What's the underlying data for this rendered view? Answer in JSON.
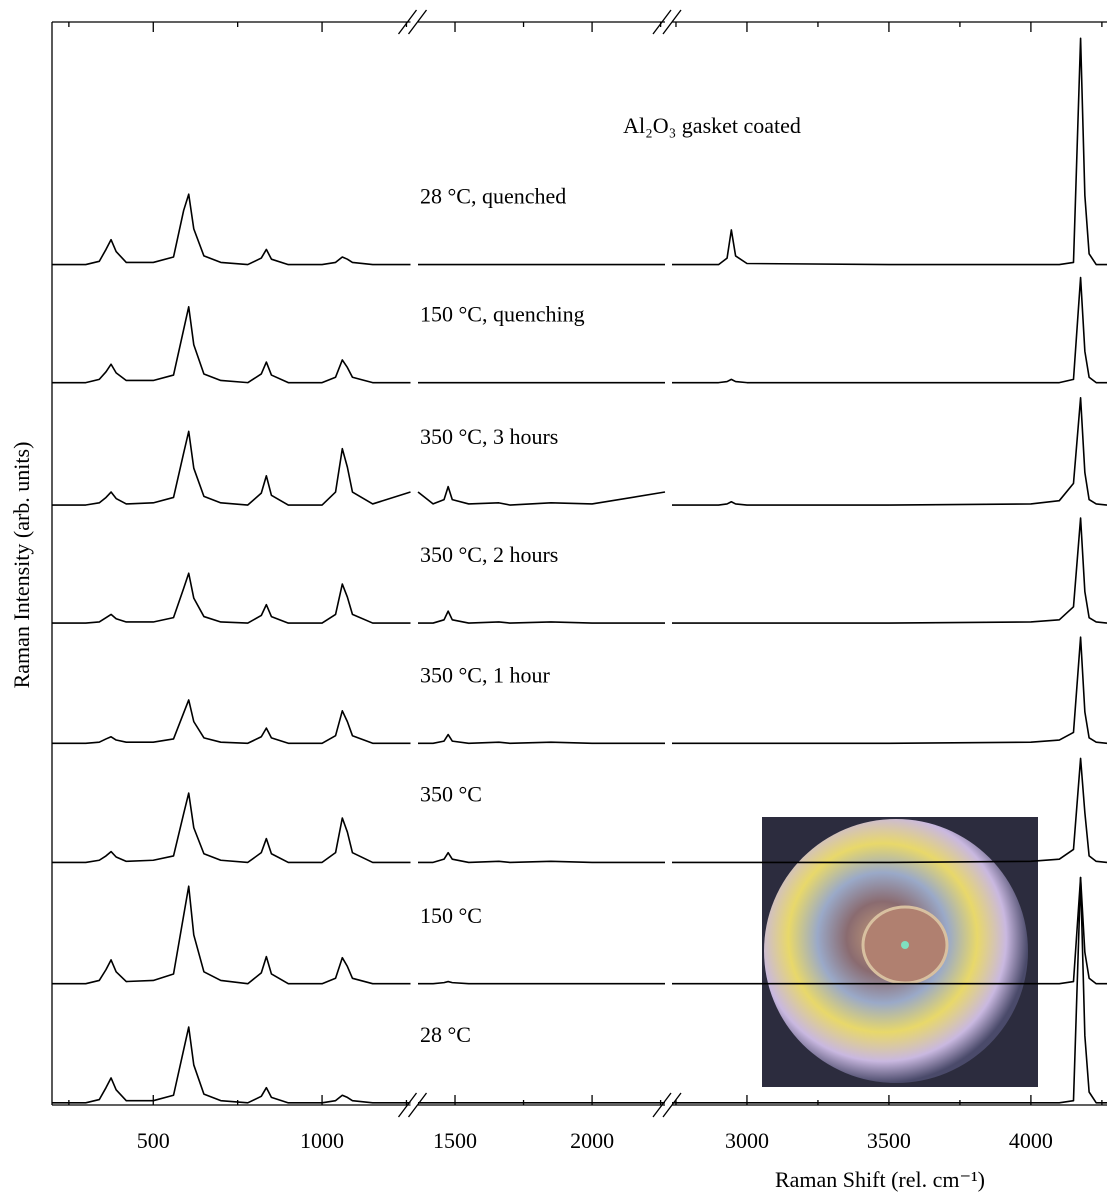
{
  "chart_data": {
    "type": "line",
    "annotation": "Al₂O₃ gasket coated",
    "xlabel": "Raman Shift (rel. cm⁻¹)",
    "ylabel": "Raman Intensity (arb. units)",
    "xlim": [
      200,
      4268
    ],
    "x_segments": [
      [
        200,
        1262
      ],
      [
        1365,
        2266
      ],
      [
        2736,
        4268
      ]
    ],
    "ylim": [
      0,
      100
    ],
    "xticks": [
      500,
      1000,
      1500,
      2000,
      3000,
      3500,
      4000
    ],
    "xminorticks": [
      250,
      750,
      1250,
      1750,
      2250,
      2750,
      3250,
      3750,
      4250
    ],
    "color": "#000000",
    "x": [
      200,
      300,
      340,
      360,
      375,
      390,
      420,
      500,
      560,
      590,
      605,
      620,
      650,
      700,
      780,
      820,
      835,
      850,
      900,
      1000,
      1040,
      1060,
      1075,
      1090,
      1150,
      1262,
      1300,
      1365,
      1420,
      1460,
      1475,
      1490,
      1550,
      1660,
      1700,
      1850,
      2000,
      2266,
      2400,
      2736,
      2900,
      2930,
      2945,
      2960,
      3000,
      3500,
      4000,
      4100,
      4150,
      4175,
      4190,
      4205,
      4230,
      4268
    ],
    "series": [
      {
        "name": "28 °C",
        "values": [
          0.2,
          0.2,
          0.5,
          1.6,
          2.5,
          1.4,
          0.4,
          0.4,
          0.9,
          5.1,
          7.2,
          3.7,
          1.0,
          0.4,
          0.2,
          0.8,
          1.6,
          0.7,
          0.2,
          0.2,
          0.4,
          0.9,
          0.7,
          0.4,
          0.2,
          0.2,
          null,
          0.2,
          0.2,
          0.2,
          0.2,
          0.2,
          0.2,
          0.2,
          0.2,
          0.2,
          0.2,
          0.2,
          null,
          0.2,
          0.2,
          0.2,
          0.2,
          0.2,
          0.2,
          0.2,
          0.2,
          0.2,
          0.4,
          21.0,
          6.4,
          1.2,
          0.2,
          0.2
        ]
      },
      {
        "name": "150 °C",
        "values": [
          11.2,
          11.2,
          11.5,
          12.5,
          13.4,
          12.3,
          11.4,
          11.5,
          12.1,
          17.5,
          20.2,
          15.7,
          12.3,
          11.5,
          11.2,
          12.2,
          13.7,
          12.1,
          11.2,
          11.2,
          11.7,
          13.6,
          12.8,
          11.7,
          11.2,
          11.2,
          null,
          11.2,
          11.2,
          11.3,
          11.4,
          11.3,
          11.2,
          11.2,
          11.2,
          11.2,
          11.2,
          11.2,
          null,
          11.2,
          11.2,
          11.2,
          11.2,
          11.2,
          11.2,
          11.2,
          11.2,
          11.2,
          11.4,
          21.0,
          14.1,
          11.7,
          11.2,
          11.2
        ]
      },
      {
        "name": "350 °C",
        "values": [
          22.4,
          22.4,
          22.6,
          23.0,
          23.4,
          22.9,
          22.5,
          22.6,
          23.0,
          26.9,
          28.8,
          25.6,
          23.2,
          22.6,
          22.4,
          23.3,
          24.6,
          23.2,
          22.4,
          22.4,
          23.3,
          26.5,
          25.2,
          23.3,
          22.4,
          22.4,
          null,
          22.4,
          22.4,
          22.7,
          23.3,
          22.7,
          22.4,
          22.5,
          22.4,
          22.5,
          22.4,
          22.4,
          null,
          22.4,
          22.4,
          22.4,
          22.4,
          22.4,
          22.4,
          22.4,
          22.5,
          22.7,
          23.6,
          32.0,
          27.0,
          23.0,
          22.5,
          22.4
        ]
      },
      {
        "name": "350 °C, 1 hour",
        "values": [
          33.4,
          33.4,
          33.5,
          33.8,
          34.0,
          33.7,
          33.5,
          33.5,
          33.8,
          36.2,
          37.4,
          35.4,
          33.9,
          33.5,
          33.4,
          34.0,
          34.8,
          33.9,
          33.4,
          33.4,
          34.1,
          36.4,
          35.4,
          34.1,
          33.4,
          33.4,
          null,
          33.4,
          33.4,
          33.6,
          34.2,
          33.6,
          33.4,
          33.5,
          33.4,
          33.5,
          33.4,
          33.4,
          null,
          33.4,
          33.4,
          33.4,
          33.4,
          33.4,
          33.4,
          33.4,
          33.5,
          33.7,
          34.4,
          43.2,
          36.3,
          33.9,
          33.5,
          33.4
        ]
      },
      {
        "name": "350 °C, 2 hours",
        "values": [
          44.5,
          44.5,
          44.6,
          45.0,
          45.3,
          44.9,
          44.6,
          44.6,
          45.0,
          47.7,
          49.1,
          46.8,
          45.1,
          44.6,
          44.5,
          45.2,
          46.2,
          45.1,
          44.5,
          44.5,
          45.3,
          48.1,
          46.9,
          45.3,
          44.5,
          44.5,
          null,
          44.5,
          44.5,
          44.8,
          45.6,
          44.8,
          44.5,
          44.6,
          44.5,
          44.6,
          44.5,
          44.5,
          null,
          44.5,
          44.5,
          44.5,
          44.5,
          44.5,
          44.5,
          44.5,
          44.6,
          44.8,
          46.0,
          54.2,
          47.4,
          45.0,
          44.6,
          44.5
        ]
      },
      {
        "name": "350 °C, 3 hours",
        "values": [
          55.4,
          55.4,
          55.6,
          56.1,
          56.6,
          56.0,
          55.5,
          55.6,
          56.1,
          60.2,
          62.2,
          58.8,
          56.2,
          55.6,
          55.4,
          56.5,
          58.1,
          56.3,
          55.4,
          55.4,
          56.6,
          60.6,
          58.9,
          56.6,
          55.5,
          56.6,
          null,
          56.6,
          55.5,
          55.9,
          57.1,
          55.9,
          55.5,
          55.6,
          55.4,
          55.6,
          55.5,
          56.6,
          null,
          55.4,
          55.4,
          55.5,
          55.7,
          55.5,
          55.4,
          55.4,
          55.5,
          55.8,
          57.4,
          65.3,
          58.4,
          55.9,
          55.5,
          55.4
        ]
      },
      {
        "name": "150 °C, quenching",
        "values": [
          66.7,
          66.7,
          67.0,
          67.7,
          68.4,
          67.6,
          66.9,
          66.9,
          67.4,
          71.6,
          73.7,
          70.2,
          67.5,
          66.9,
          66.7,
          67.5,
          68.6,
          67.4,
          66.7,
          66.7,
          67.2,
          68.8,
          68.1,
          67.2,
          66.7,
          66.7,
          null,
          66.7,
          66.7,
          66.7,
          66.7,
          66.7,
          66.7,
          66.7,
          66.7,
          66.7,
          66.7,
          66.7,
          null,
          66.7,
          66.7,
          66.8,
          67.0,
          66.8,
          66.7,
          66.7,
          66.7,
          66.7,
          67.0,
          76.4,
          69.6,
          67.2,
          66.7,
          66.7
        ]
      },
      {
        "name": "28 °C, quenched",
        "values": [
          77.6,
          77.6,
          77.9,
          79.0,
          79.9,
          78.8,
          77.8,
          77.8,
          78.3,
          82.6,
          84.1,
          80.9,
          78.4,
          77.8,
          77.6,
          78.2,
          79.0,
          78.1,
          77.6,
          77.6,
          77.8,
          78.3,
          78.1,
          77.8,
          77.6,
          77.6,
          null,
          77.6,
          77.6,
          77.6,
          77.6,
          77.6,
          77.6,
          77.6,
          77.6,
          77.6,
          77.6,
          77.6,
          null,
          77.6,
          77.6,
          78.2,
          80.8,
          78.4,
          77.7,
          77.6,
          77.6,
          77.6,
          77.8,
          98.5,
          84.0,
          78.6,
          77.6,
          77.6
        ]
      }
    ]
  }
}
